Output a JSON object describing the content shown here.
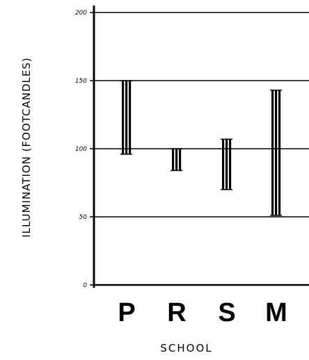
{
  "chart_data": {
    "type": "bar",
    "subtype": "floating-range",
    "title": "",
    "xlabel": "SCHOOL",
    "ylabel": "ILLUMINATION (FOOTCANDLES)",
    "ylim": [
      0,
      200
    ],
    "yticks": [
      0,
      50,
      100,
      150,
      200
    ],
    "ytick_labels": [
      "0",
      "50",
      "100",
      "150",
      "200"
    ],
    "grid": true,
    "categories": [
      "P",
      "R",
      "S",
      "M"
    ],
    "ranges": [
      {
        "category": "P",
        "low": 96,
        "high": 150
      },
      {
        "category": "R",
        "low": 84,
        "high": 100
      },
      {
        "category": "S",
        "low": 70,
        "high": 107
      },
      {
        "category": "M",
        "low": 51,
        "high": 143
      }
    ]
  }
}
